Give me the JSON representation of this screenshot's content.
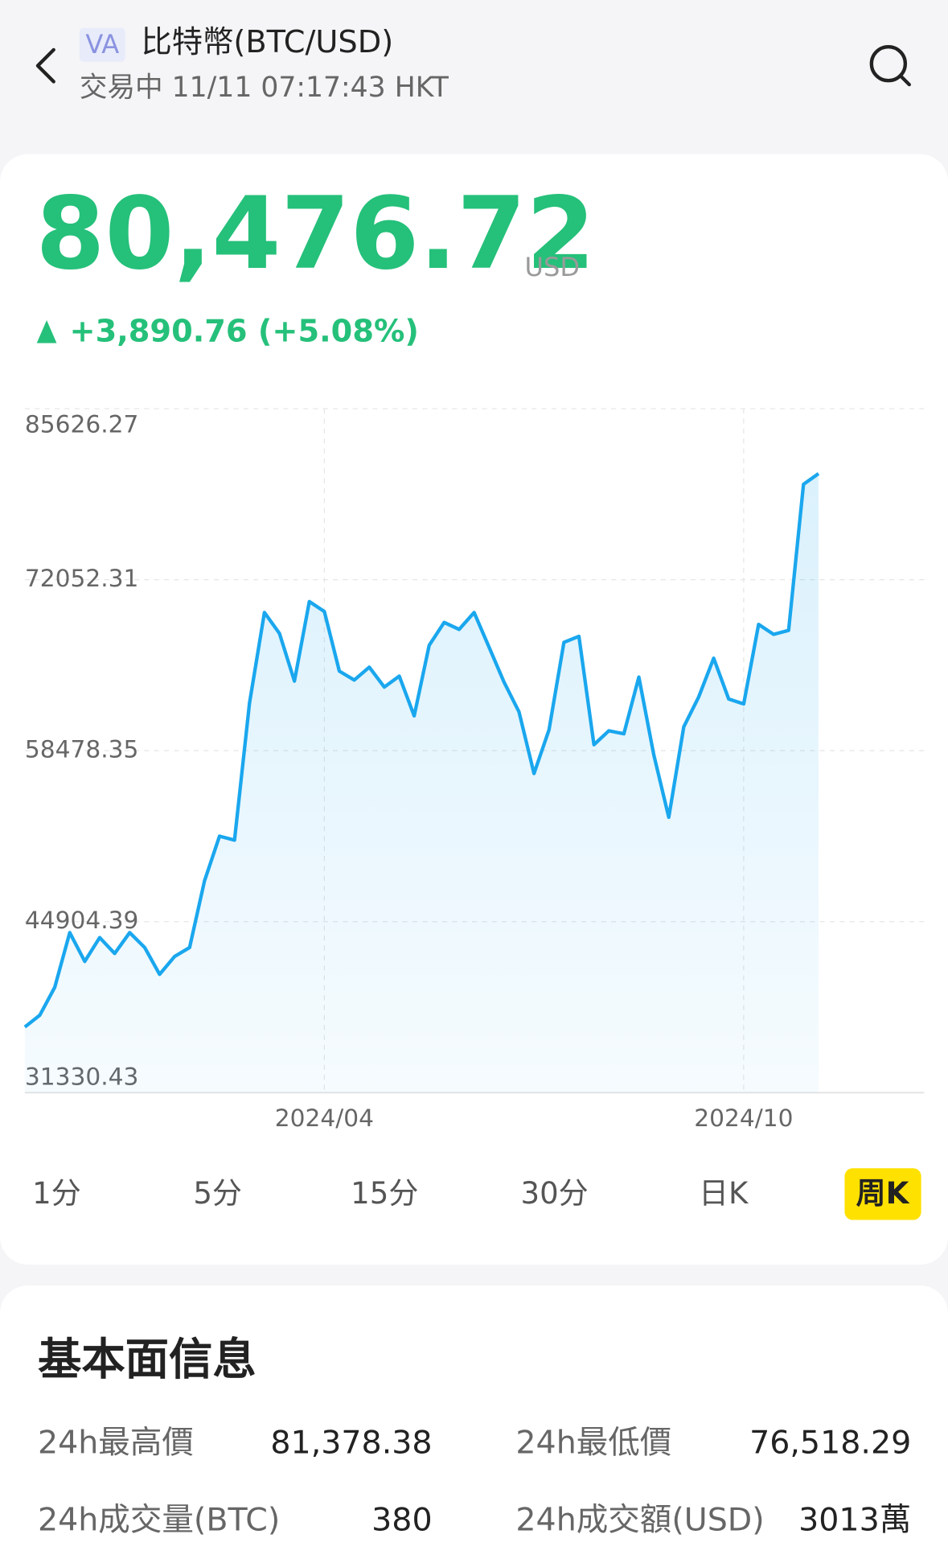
{
  "header": {
    "badge": "VA",
    "title": "比特幣(BTC/USD)",
    "status": "交易中 11/11 07:17:43 HKT"
  },
  "quote": {
    "price": "80,476.72",
    "currency": "USD",
    "change": "+3,890.76 (+5.08%)"
  },
  "chart_data": {
    "type": "line",
    "color": "#1aa7ee",
    "area": true,
    "grid": true,
    "categories": [
      null,
      null,
      null,
      null,
      null,
      null,
      null,
      null,
      null,
      null,
      null,
      null,
      null,
      null,
      null,
      null,
      null,
      null,
      null,
      null,
      "2024/04",
      null,
      null,
      null,
      null,
      null,
      null,
      null,
      null,
      null,
      null,
      null,
      null,
      null,
      null,
      null,
      null,
      null,
      null,
      null,
      null,
      null,
      null,
      null,
      null,
      null,
      null,
      null,
      "2024/10",
      null,
      null,
      null,
      null,
      null
    ],
    "values": [
      36539,
      37486,
      39696,
      44036,
      41748,
      43642,
      42379,
      44036,
      42853,
      40722,
      42142,
      42853,
      48140,
      51692,
      51376,
      62267,
      69449,
      67791,
      64003,
      70316,
      69528,
      64792,
      64082,
      65108,
      63530,
      64398,
      61241,
      66844,
      68660,
      68107,
      69449,
      66687,
      63924,
      61557,
      56664,
      60136,
      67081,
      67554,
      58952,
      60057,
      59820,
      64319,
      58163,
      53192,
      60373,
      62740,
      65818,
      62583,
      62188,
      68502,
      67712,
      68028,
      79629,
      80476.72
    ],
    "ylim": [
      31330.43,
      85626.27
    ],
    "yticks": [
      31330.43,
      44904.39,
      58478.35,
      72052.31,
      85626.27
    ]
  },
  "periods": [
    {
      "label": "1分"
    },
    {
      "label": "5分"
    },
    {
      "label": "15分"
    },
    {
      "label": "30分"
    },
    {
      "label": "日K"
    },
    {
      "label": "周K",
      "selected": true
    }
  ],
  "fundamentals": {
    "title": "基本面信息",
    "items": [
      {
        "label": "24h最高價",
        "value": "81,378.38"
      },
      {
        "label": "24h最低價",
        "value": "76,518.29"
      },
      {
        "label": "24h成交量(BTC)",
        "value": "380"
      },
      {
        "label": "24h成交額(USD)",
        "value": "3013萬"
      }
    ]
  }
}
